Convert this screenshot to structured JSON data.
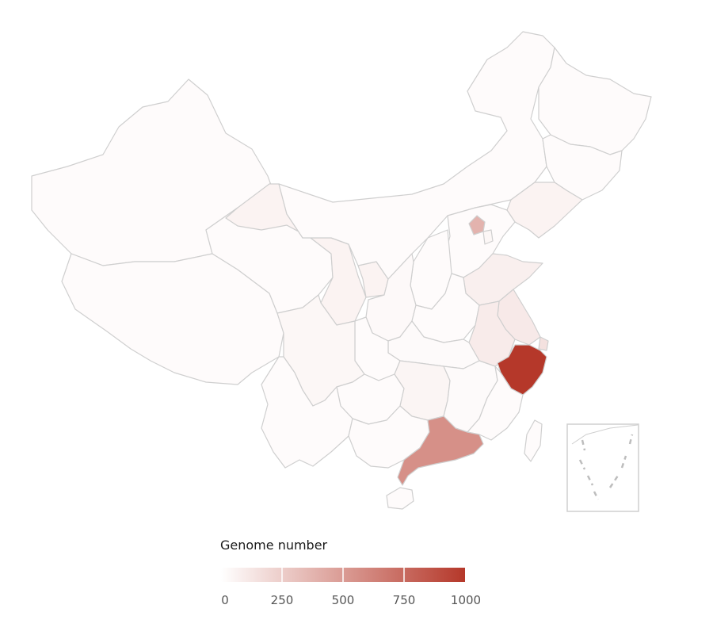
{
  "legend": {
    "title": "Genome number",
    "min": 0,
    "max": 1000,
    "ticks": [
      "0",
      "250",
      "500",
      "750",
      "1000"
    ],
    "color_low": "#ffffff",
    "color_high": "#b5382a"
  },
  "border_color": "#cfcfcf",
  "regions": {
    "xinjiang": {
      "value": 15
    },
    "tibet": {
      "value": 5
    },
    "qinghai": {
      "value": 5
    },
    "gansu": {
      "value": 60
    },
    "ningxia": {
      "value": 60
    },
    "inner-mongolia": {
      "value": 5
    },
    "heilongjiang": {
      "value": 5
    },
    "jilin": {
      "value": 5
    },
    "liaoning": {
      "value": 60
    },
    "beijing": {
      "value": 380
    },
    "tianjin": {
      "value": 40
    },
    "hebei": {
      "value": 20
    },
    "shanxi": {
      "value": 10
    },
    "shaanxi": {
      "value": 30
    },
    "shandong": {
      "value": 80
    },
    "henan": {
      "value": 15
    },
    "jiangsu": {
      "value": 110
    },
    "anhui": {
      "value": 100
    },
    "shanghai": {
      "value": 150
    },
    "zhejiang": {
      "value": 1000
    },
    "hubei": {
      "value": 25
    },
    "sichuan": {
      "value": 40
    },
    "chongqing": {
      "value": 20
    },
    "hunan": {
      "value": 50
    },
    "jiangxi": {
      "value": 25
    },
    "fujian": {
      "value": 15
    },
    "guizhou": {
      "value": 5
    },
    "yunnan": {
      "value": 5
    },
    "guangxi": {
      "value": 5
    },
    "guangdong": {
      "value": 560
    },
    "hainan": {
      "value": 5
    },
    "taiwan": {
      "value": 5
    }
  }
}
